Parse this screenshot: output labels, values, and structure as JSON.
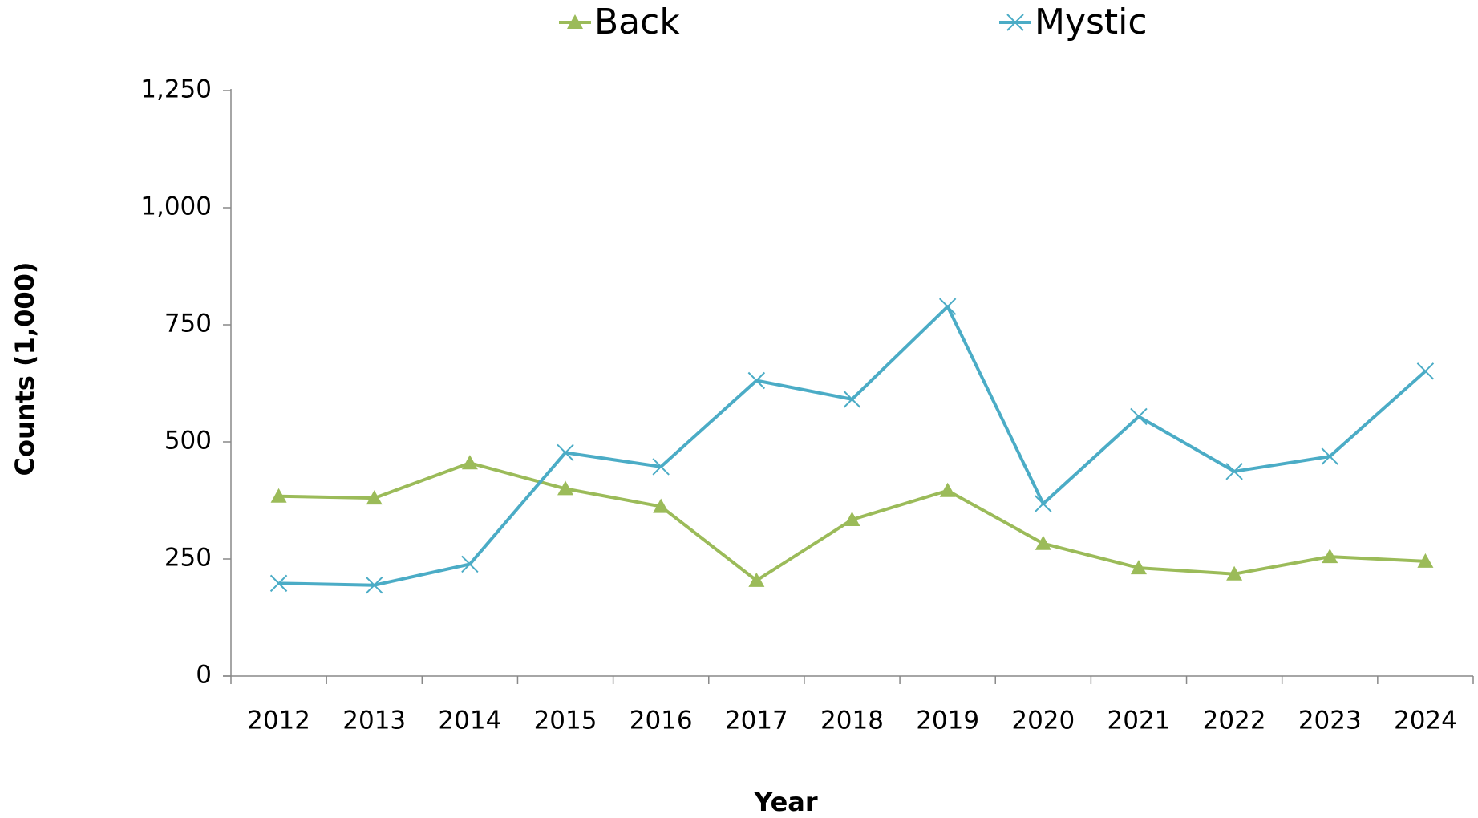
{
  "chart_data": {
    "type": "line",
    "x_label": "Year",
    "y_label": "Counts (1,000)",
    "categories": [
      "2012",
      "2013",
      "2014",
      "2015",
      "2016",
      "2017",
      "2018",
      "2019",
      "2020",
      "2021",
      "2022",
      "2023",
      "2024"
    ],
    "series": [
      {
        "name": "Back",
        "color": "#9bbb59",
        "marker": "triangle",
        "values": [
          384,
          380,
          455,
          400,
          362,
          204,
          334,
          396,
          283,
          231,
          218,
          255,
          245
        ]
      },
      {
        "name": "Mystic",
        "color": "#4bacc6",
        "marker": "x",
        "values": [
          198,
          194,
          239,
          477,
          447,
          631,
          591,
          789,
          368,
          554,
          437,
          469,
          651
        ]
      }
    ],
    "ylim": [
      0,
      1250
    ],
    "yticks": [
      0,
      250,
      500,
      750,
      {
        "value": 1000,
        "label": "1,000"
      },
      {
        "value": 1250,
        "label": "1,250"
      }
    ],
    "legend": "top",
    "grid": false
  }
}
